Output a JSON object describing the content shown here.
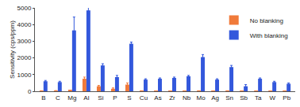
{
  "chart_data": {
    "type": "bar",
    "y_label": "Sensitivity (cps/ppm)",
    "categories": [
      "B",
      "C",
      "Mg",
      "Al",
      "Si",
      "P",
      "S",
      "Cu",
      "As",
      "Zr",
      "Nb",
      "Mo",
      "Ag",
      "Sn",
      "Sb",
      "Ta",
      "W",
      "Pb"
    ],
    "series": [
      {
        "name": "No blanking",
        "color": "#f07a3a",
        "values": [
          20,
          30,
          50,
          750,
          300,
          150,
          400,
          20,
          10,
          10,
          10,
          20,
          10,
          20,
          10,
          10,
          10,
          10
        ],
        "errors": [
          10,
          10,
          10,
          100,
          50,
          50,
          100,
          10,
          10,
          10,
          10,
          10,
          10,
          10,
          10,
          10,
          10,
          10
        ]
      },
      {
        "name": "With blanking",
        "color": "#3358dc",
        "values": [
          600,
          550,
          3650,
          4850,
          1550,
          850,
          2850,
          700,
          750,
          800,
          900,
          2050,
          700,
          1450,
          300,
          750,
          550,
          450
        ],
        "errors": [
          50,
          50,
          800,
          250,
          100,
          100,
          100,
          50,
          50,
          50,
          50,
          150,
          50,
          100,
          100,
          50,
          50,
          50
        ]
      }
    ],
    "ylim": [
      0,
      5000
    ],
    "yticks": [
      0,
      1000,
      2000,
      3000,
      4000,
      5000
    ],
    "grid": false,
    "legend": "top-right"
  }
}
